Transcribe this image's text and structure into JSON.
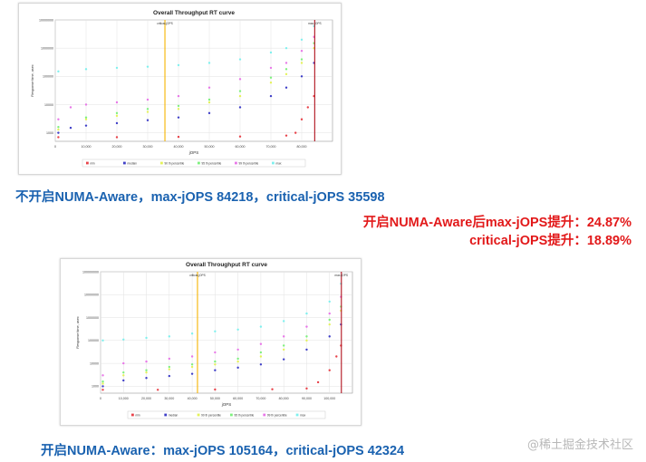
{
  "captions": {
    "top": "不开启NUMA-Aware，max-jOPS 84218，critical-jOPS 35598",
    "gain1": "开启NUMA-Aware后max-jOPS提升：24.87%",
    "gain2": "critical-jOPS提升：18.89%",
    "bottom": "开启NUMA-Aware：max-jOPS 105164，critical-jOPS 42324"
  },
  "watermark": "@稀土掘金技术社区",
  "chart_data": [
    {
      "type": "scatter",
      "title": "Overall Throughput RT curve",
      "xlabel": "jOPS",
      "ylabel": "Response time, usec",
      "y_scale": "log",
      "xlim": [
        0,
        90000
      ],
      "ylim": [
        500,
        10000000
      ],
      "x_ticks": [
        0,
        10000,
        20000,
        30000,
        40000,
        50000,
        60000,
        70000,
        80000
      ],
      "x_tick_labels": [
        "0",
        "10,000",
        "20,000",
        "30,000",
        "40,000",
        "50,000",
        "60,000",
        "70,000",
        "80,000"
      ],
      "y_ticks": [
        1000,
        10000,
        100000,
        1000000,
        10000000
      ],
      "y_tick_labels": [
        "1000",
        "10000",
        "100000",
        "1000000",
        "10000000"
      ],
      "grid": true,
      "legend_position": "bottom",
      "markers": [
        {
          "label": "critical-jOPS",
          "x": 35598,
          "color": "#f5b400"
        },
        {
          "label": "max-jOPS",
          "x": 84218,
          "color": "#b0101c"
        }
      ],
      "colors": {
        "min": "#e8434a",
        "median": "#4040c8",
        "p90": "#e4f25a",
        "p95": "#7ef07e",
        "p99": "#e878e8",
        "max": "#7ff0ee"
      },
      "series": [
        {
          "name": "min",
          "points": [
            [
              1000,
              700
            ],
            [
              20000,
              700
            ],
            [
              40000,
              720
            ],
            [
              60000,
              740
            ],
            [
              75000,
              800
            ],
            [
              78000,
              1000
            ],
            [
              80000,
              3000
            ],
            [
              82000,
              8000
            ],
            [
              84000,
              20000
            ]
          ]
        },
        {
          "name": "median",
          "points": [
            [
              1000,
              1000
            ],
            [
              5000,
              1500
            ],
            [
              10000,
              1800
            ],
            [
              20000,
              2200
            ],
            [
              30000,
              2800
            ],
            [
              40000,
              3500
            ],
            [
              50000,
              5000
            ],
            [
              60000,
              8000
            ],
            [
              70000,
              20000
            ],
            [
              75000,
              40000
            ],
            [
              80000,
              100000
            ],
            [
              84000,
              300000
            ]
          ]
        },
        {
          "name": "90 th percentile",
          "points": [
            [
              1000,
              1300
            ],
            [
              10000,
              3000
            ],
            [
              20000,
              4000
            ],
            [
              30000,
              5500
            ],
            [
              40000,
              7000
            ],
            [
              50000,
              12000
            ],
            [
              60000,
              20000
            ],
            [
              70000,
              60000
            ],
            [
              75000,
              120000
            ],
            [
              80000,
              300000
            ],
            [
              84000,
              1000000
            ]
          ]
        },
        {
          "name": "95 th percentile",
          "points": [
            [
              1000,
              1600
            ],
            [
              10000,
              3500
            ],
            [
              20000,
              5000
            ],
            [
              30000,
              7000
            ],
            [
              40000,
              9000
            ],
            [
              50000,
              15000
            ],
            [
              60000,
              30000
            ],
            [
              70000,
              90000
            ],
            [
              75000,
              180000
            ],
            [
              80000,
              400000
            ],
            [
              84000,
              1500000
            ]
          ]
        },
        {
          "name": "99 th percentile",
          "points": [
            [
              1000,
              3000
            ],
            [
              5000,
              8000
            ],
            [
              10000,
              10000
            ],
            [
              20000,
              12000
            ],
            [
              30000,
              15000
            ],
            [
              40000,
              20000
            ],
            [
              50000,
              40000
            ],
            [
              60000,
              80000
            ],
            [
              70000,
              200000
            ],
            [
              75000,
              300000
            ],
            [
              80000,
              800000
            ],
            [
              84000,
              2500000
            ]
          ]
        },
        {
          "name": "max",
          "points": [
            [
              1000,
              150000
            ],
            [
              10000,
              180000
            ],
            [
              20000,
              200000
            ],
            [
              30000,
              220000
            ],
            [
              40000,
              250000
            ],
            [
              50000,
              300000
            ],
            [
              60000,
              400000
            ],
            [
              70000,
              700000
            ],
            [
              75000,
              1000000
            ],
            [
              80000,
              2000000
            ],
            [
              84000,
              6000000
            ]
          ]
        }
      ]
    },
    {
      "type": "scatter",
      "title": "Overall Throughput RT curve",
      "xlabel": "jOPS",
      "ylabel": "Response time, usec",
      "y_scale": "log",
      "xlim": [
        0,
        110000
      ],
      "ylim": [
        500,
        100000000
      ],
      "x_ticks": [
        0,
        10000,
        20000,
        30000,
        40000,
        50000,
        60000,
        70000,
        80000,
        90000,
        100000
      ],
      "x_tick_labels": [
        "0",
        "10,000",
        "20,000",
        "30,000",
        "40,000",
        "50,000",
        "60,000",
        "70,000",
        "80,000",
        "90,000",
        "100,000"
      ],
      "y_ticks": [
        1000,
        10000,
        100000,
        1000000,
        10000000,
        100000000
      ],
      "y_tick_labels": [
        "1000",
        "10000",
        "100000",
        "1000000",
        "10000000",
        "100000000"
      ],
      "grid": true,
      "legend_position": "bottom",
      "markers": [
        {
          "label": "critical-jOPS",
          "x": 42324,
          "color": "#f5b400"
        },
        {
          "label": "max-jOPS",
          "x": 105164,
          "color": "#b0101c"
        }
      ],
      "colors": {
        "min": "#e8434a",
        "median": "#4040c8",
        "p90": "#e4f25a",
        "p95": "#7ef07e",
        "p99": "#e878e8",
        "max": "#7ff0ee"
      },
      "series": [
        {
          "name": "min",
          "points": [
            [
              1000,
              700
            ],
            [
              25000,
              700
            ],
            [
              50000,
              720
            ],
            [
              75000,
              740
            ],
            [
              90000,
              800
            ],
            [
              95000,
              1500
            ],
            [
              100000,
              5000
            ],
            [
              103000,
              20000
            ],
            [
              105000,
              60000
            ]
          ]
        },
        {
          "name": "median",
          "points": [
            [
              1000,
              1000
            ],
            [
              10000,
              1800
            ],
            [
              20000,
              2300
            ],
            [
              30000,
              2800
            ],
            [
              40000,
              3500
            ],
            [
              50000,
              5000
            ],
            [
              60000,
              6500
            ],
            [
              70000,
              9000
            ],
            [
              80000,
              15000
            ],
            [
              90000,
              40000
            ],
            [
              100000,
              150000
            ],
            [
              105000,
              500000
            ]
          ]
        },
        {
          "name": "90 th percentile",
          "points": [
            [
              1000,
              1300
            ],
            [
              10000,
              3000
            ],
            [
              20000,
              4000
            ],
            [
              30000,
              5500
            ],
            [
              40000,
              7000
            ],
            [
              50000,
              9000
            ],
            [
              60000,
              12000
            ],
            [
              70000,
              20000
            ],
            [
              80000,
              40000
            ],
            [
              90000,
              100000
            ],
            [
              100000,
              500000
            ],
            [
              105000,
              2000000
            ]
          ]
        },
        {
          "name": "95 th percentile",
          "points": [
            [
              1000,
              1600
            ],
            [
              10000,
              4000
            ],
            [
              20000,
              5000
            ],
            [
              30000,
              7000
            ],
            [
              40000,
              9000
            ],
            [
              50000,
              12000
            ],
            [
              60000,
              16000
            ],
            [
              70000,
              30000
            ],
            [
              80000,
              60000
            ],
            [
              90000,
              150000
            ],
            [
              100000,
              800000
            ],
            [
              105000,
              3000000
            ]
          ]
        },
        {
          "name": "99 th percentile",
          "points": [
            [
              1000,
              3000
            ],
            [
              10000,
              10000
            ],
            [
              20000,
              12000
            ],
            [
              30000,
              16000
            ],
            [
              40000,
              20000
            ],
            [
              50000,
              30000
            ],
            [
              60000,
              40000
            ],
            [
              70000,
              70000
            ],
            [
              80000,
              150000
            ],
            [
              90000,
              400000
            ],
            [
              100000,
              1500000
            ],
            [
              105000,
              8000000
            ]
          ]
        },
        {
          "name": "max",
          "points": [
            [
              1000,
              100000
            ],
            [
              10000,
              110000
            ],
            [
              20000,
              130000
            ],
            [
              30000,
              150000
            ],
            [
              40000,
              200000
            ],
            [
              50000,
              250000
            ],
            [
              60000,
              300000
            ],
            [
              70000,
              400000
            ],
            [
              80000,
              700000
            ],
            [
              90000,
              1500000
            ],
            [
              100000,
              5000000
            ],
            [
              105000,
              30000000
            ]
          ]
        }
      ]
    }
  ]
}
